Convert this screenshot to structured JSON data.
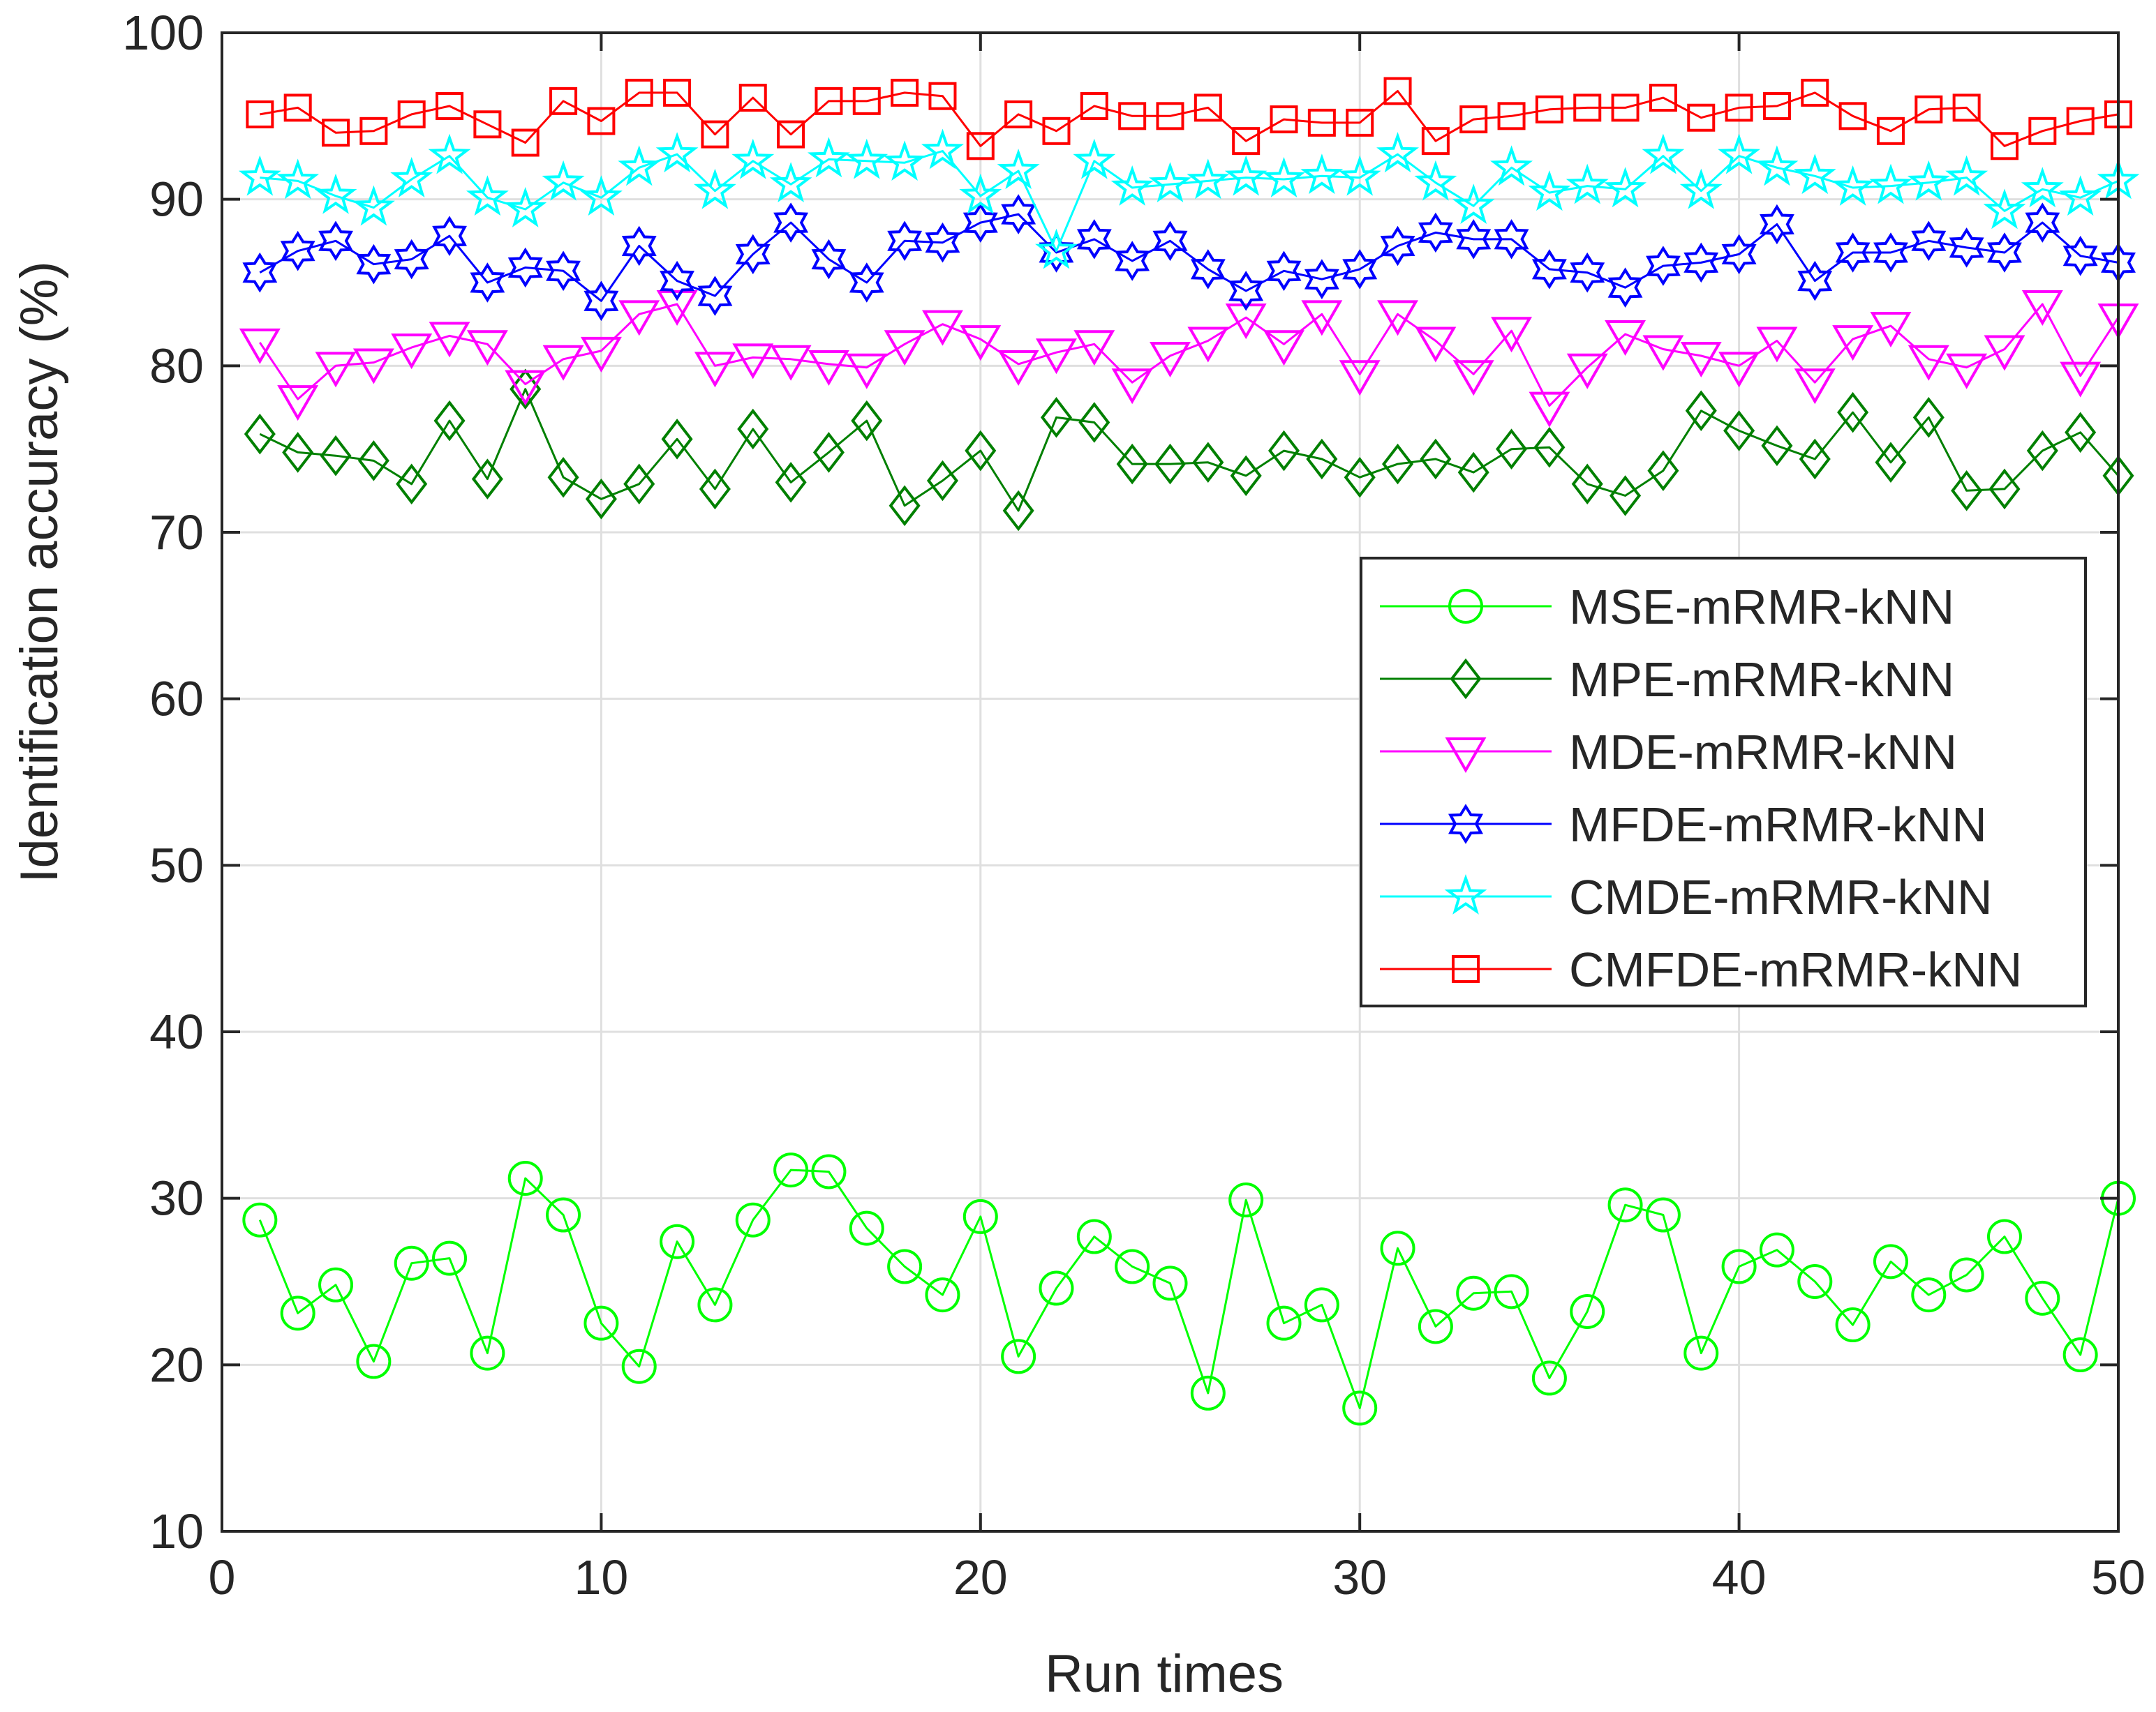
{
  "chart_data": {
    "type": "line",
    "title": "",
    "xlabel": "Run times",
    "ylabel": "Identification accuracy (%)",
    "xlim": [
      0,
      50
    ],
    "ylim": [
      10,
      100
    ],
    "xticks": [
      0,
      10,
      20,
      30,
      40,
      50
    ],
    "yticks": [
      10,
      20,
      30,
      40,
      50,
      60,
      70,
      80,
      90,
      100
    ],
    "grid": true,
    "legend_position": "right",
    "x": [
      1,
      2,
      3,
      4,
      5,
      6,
      7,
      8,
      9,
      10,
      11,
      12,
      13,
      14,
      15,
      16,
      17,
      18,
      19,
      20,
      21,
      22,
      23,
      24,
      25,
      26,
      27,
      28,
      29,
      30,
      31,
      32,
      33,
      34,
      35,
      36,
      37,
      38,
      39,
      40,
      41,
      42,
      43,
      44,
      45,
      46,
      47,
      48,
      49,
      50
    ],
    "series": [
      {
        "name": "MSE-mRMR-kNN",
        "color": "#00ff00",
        "marker": "circle",
        "values": [
          28.7,
          23.1,
          24.8,
          20.2,
          26.1,
          26.4,
          20.7,
          31.2,
          29.0,
          22.5,
          19.9,
          27.4,
          23.6,
          28.7,
          31.7,
          31.6,
          28.2,
          25.9,
          24.2,
          28.9,
          20.5,
          24.6,
          27.7,
          25.9,
          24.9,
          18.3,
          29.9,
          22.5,
          23.6,
          17.4,
          27.0,
          22.3,
          24.3,
          24.4,
          19.2,
          23.2,
          29.6,
          29.0,
          20.7,
          25.9,
          26.9,
          25.0,
          22.4,
          26.2,
          24.2,
          25.4,
          27.7,
          24.0,
          20.6,
          30.0
        ]
      },
      {
        "name": "MPE-mRMR-kNN",
        "color": "#008000",
        "marker": "diamond",
        "values": [
          75.9,
          74.8,
          74.6,
          74.3,
          72.9,
          76.7,
          73.2,
          78.6,
          73.3,
          72.0,
          72.9,
          75.6,
          72.6,
          76.2,
          73.0,
          74.8,
          76.7,
          71.6,
          73.1,
          74.9,
          71.3,
          76.9,
          76.6,
          74.1,
          74.1,
          74.2,
          73.4,
          74.9,
          74.4,
          73.3,
          74.1,
          74.4,
          73.6,
          75.0,
          75.1,
          72.9,
          72.2,
          73.7,
          77.3,
          76.1,
          75.2,
          74.4,
          77.2,
          74.2,
          76.9,
          72.5,
          72.6,
          74.9,
          76.0,
          73.4
        ]
      },
      {
        "name": "MDE-mRMR-kNN",
        "color": "#ff00ff",
        "marker": "triangle-down",
        "values": [
          81.4,
          78.0,
          80.0,
          80.2,
          81.1,
          81.8,
          81.3,
          78.9,
          80.4,
          80.9,
          83.1,
          83.7,
          80.0,
          80.5,
          80.4,
          80.1,
          79.9,
          81.3,
          82.5,
          81.6,
          80.1,
          80.8,
          81.3,
          79.0,
          80.6,
          81.5,
          82.9,
          81.3,
          83.1,
          79.5,
          83.1,
          81.5,
          79.5,
          82.1,
          77.6,
          79.9,
          81.9,
          81.0,
          80.6,
          80.0,
          81.5,
          79.0,
          81.6,
          82.4,
          80.4,
          79.9,
          81.0,
          83.7,
          79.4,
          82.9
        ]
      },
      {
        "name": "MFDE-mRMR-kNN",
        "color": "#0000ff",
        "marker": "hexagram",
        "values": [
          85.6,
          86.9,
          87.5,
          86.1,
          86.4,
          87.8,
          85.0,
          85.9,
          85.7,
          83.9,
          87.2,
          85.1,
          84.2,
          86.7,
          88.6,
          86.4,
          85.0,
          87.5,
          87.4,
          88.6,
          89.1,
          86.8,
          87.6,
          86.3,
          87.5,
          85.8,
          84.5,
          85.7,
          85.2,
          85.8,
          87.2,
          88.0,
          87.6,
          87.6,
          85.8,
          85.6,
          84.7,
          86.0,
          86.2,
          86.7,
          88.5,
          85.1,
          86.8,
          86.8,
          87.5,
          87.1,
          86.8,
          88.6,
          86.6,
          86.2
        ]
      },
      {
        "name": "CMDE-mRMR-kNN",
        "color": "#00ffff",
        "marker": "pentagram",
        "values": [
          91.3,
          91.1,
          90.2,
          89.5,
          91.2,
          92.6,
          90.1,
          89.4,
          91.0,
          90.1,
          91.9,
          92.7,
          90.5,
          92.3,
          90.9,
          92.4,
          92.3,
          92.2,
          92.9,
          90.2,
          91.7,
          86.9,
          92.3,
          90.7,
          90.9,
          91.1,
          91.3,
          91.2,
          91.4,
          91.3,
          92.7,
          91.0,
          89.6,
          91.9,
          90.4,
          90.8,
          90.6,
          92.6,
          90.5,
          92.6,
          91.9,
          91.4,
          90.7,
          90.8,
          91.0,
          91.3,
          89.3,
          90.6,
          90.1,
          91.1
        ]
      },
      {
        "name": "CMFDE-mRMR-kNN",
        "color": "#ff0000",
        "marker": "square",
        "values": [
          95.1,
          95.5,
          94.0,
          94.1,
          95.1,
          95.6,
          94.5,
          93.4,
          95.9,
          94.7,
          96.4,
          96.4,
          93.9,
          96.1,
          93.9,
          95.9,
          95.9,
          96.4,
          96.2,
          93.2,
          95.1,
          94.1,
          95.6,
          95.0,
          95.0,
          95.5,
          93.5,
          94.8,
          94.6,
          94.6,
          96.5,
          93.5,
          94.8,
          95.0,
          95.4,
          95.5,
          95.5,
          96.1,
          94.9,
          95.5,
          95.6,
          96.4,
          95.0,
          94.1,
          95.4,
          95.5,
          93.2,
          94.1,
          94.7,
          95.1
        ]
      }
    ]
  }
}
